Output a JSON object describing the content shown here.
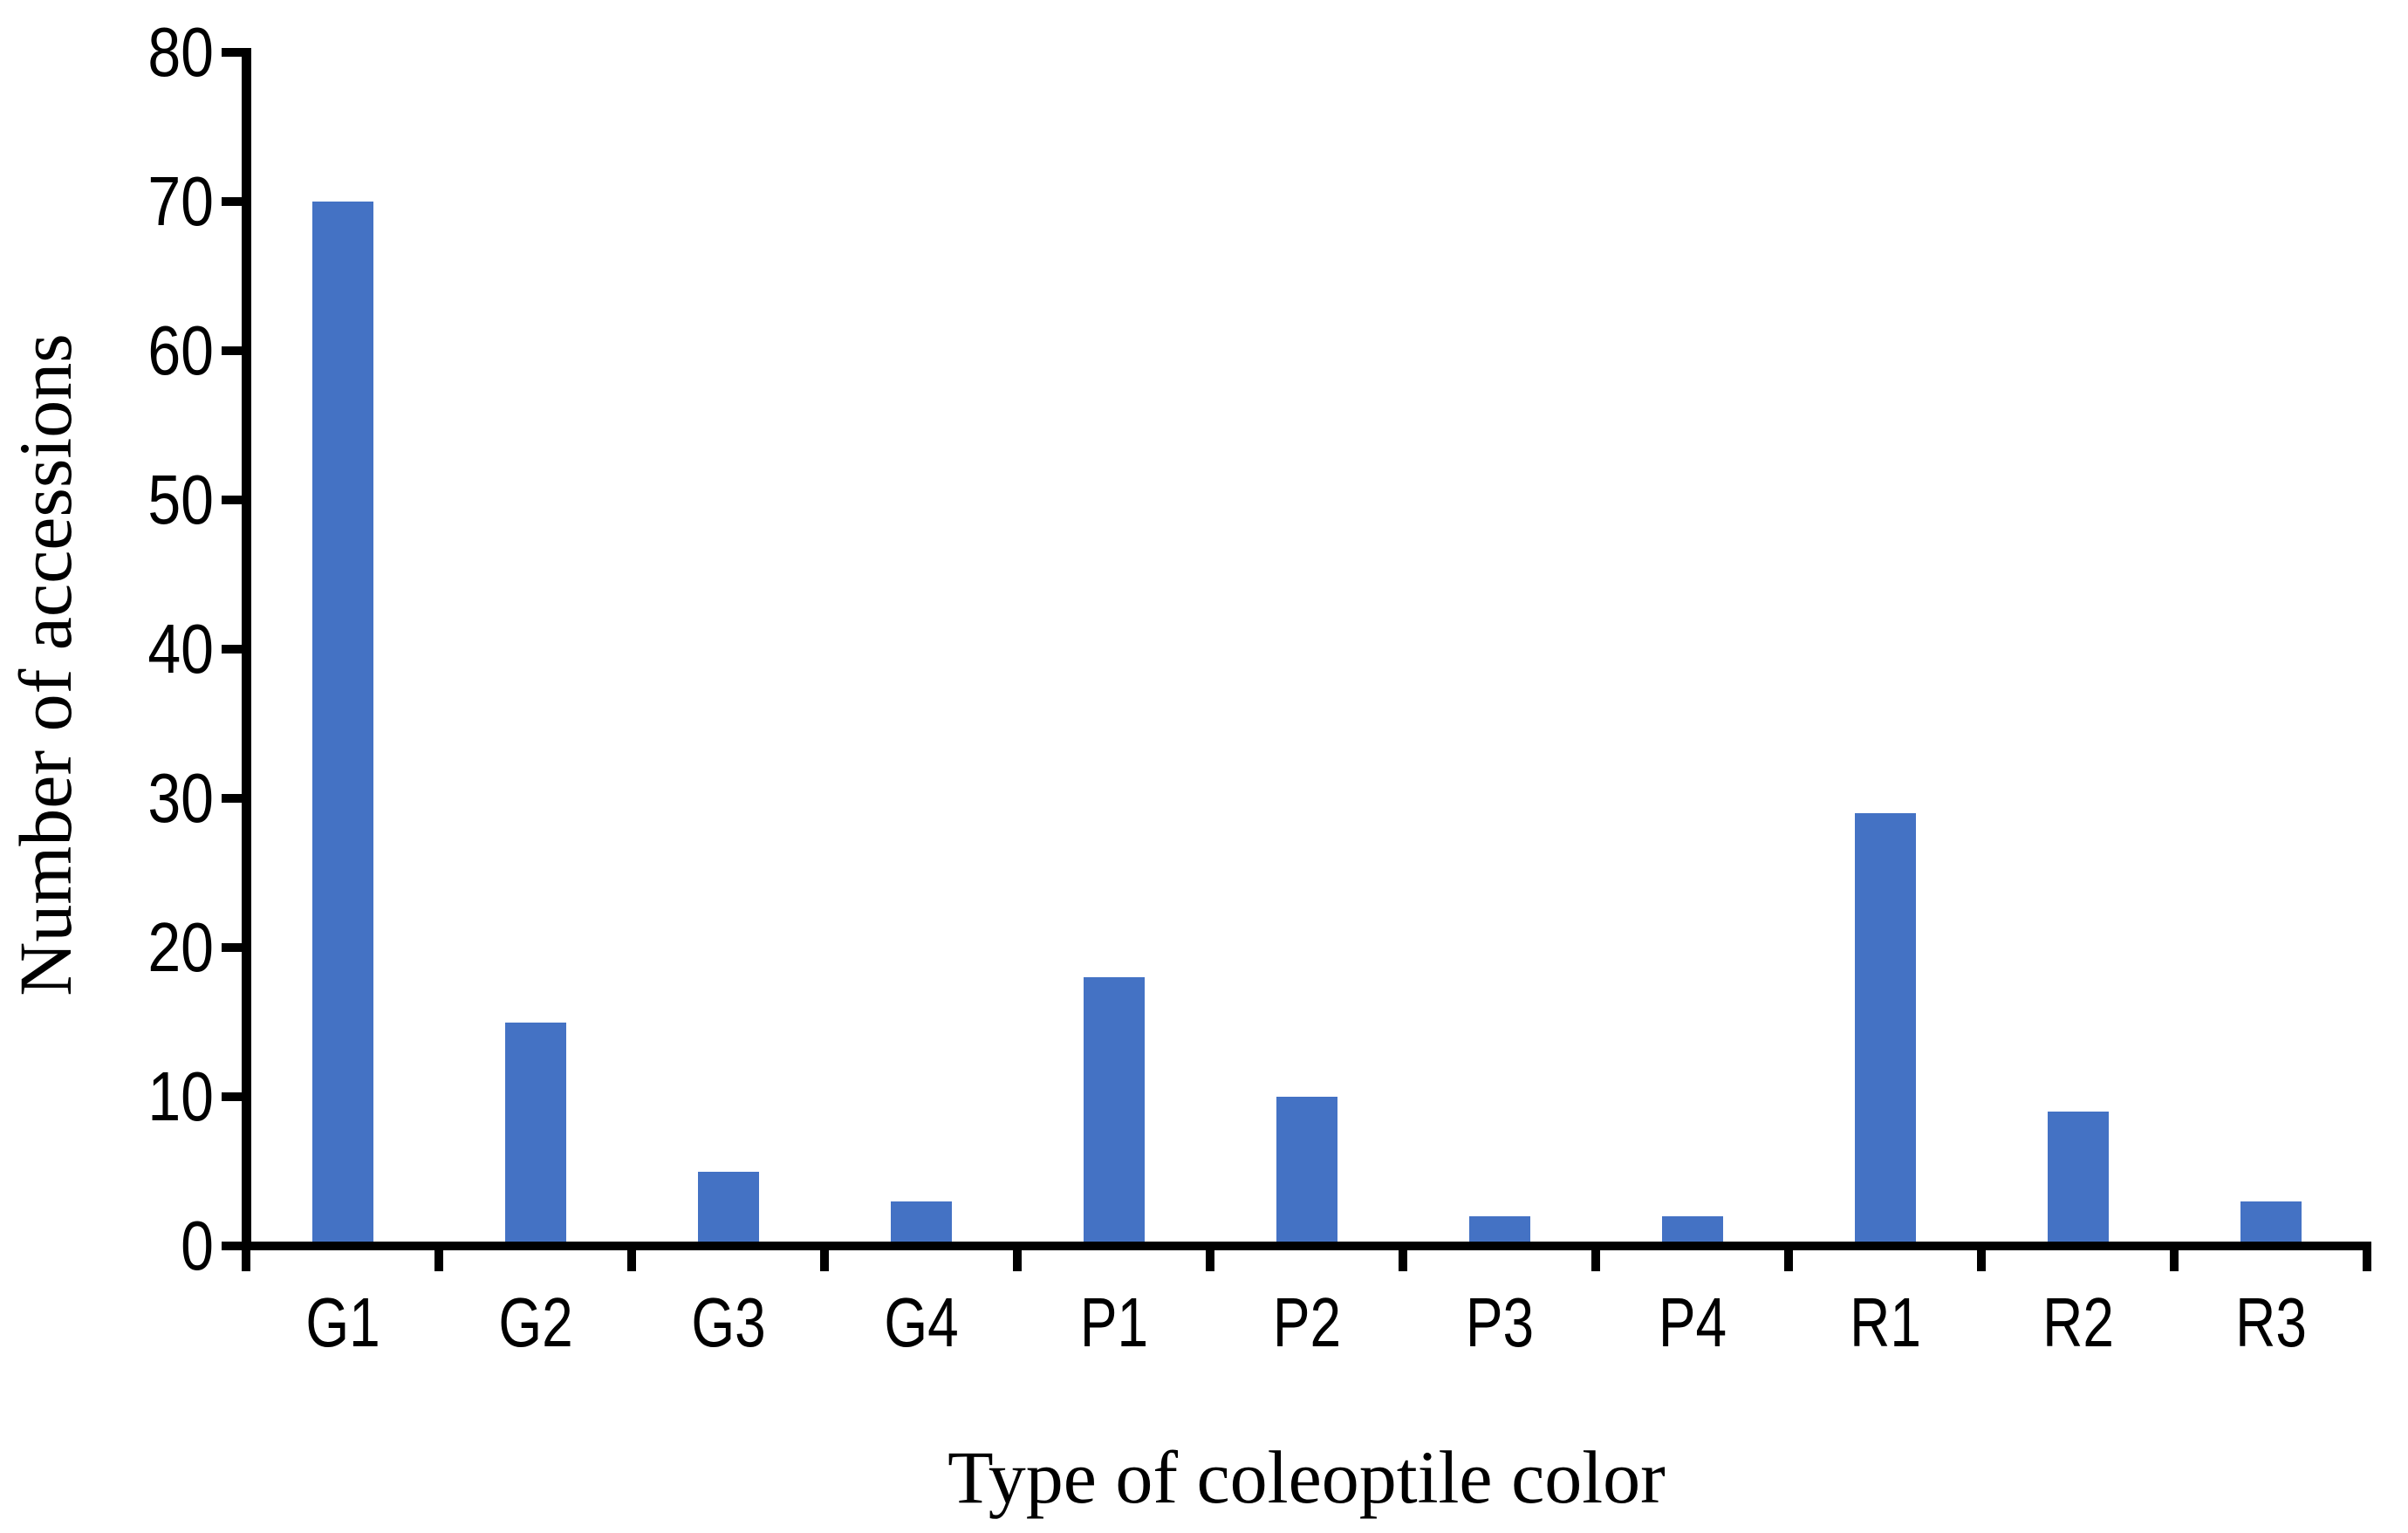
{
  "chart_data": {
    "type": "bar",
    "title": "",
    "categories": [
      "G1",
      "G2",
      "G3",
      "G4",
      "P1",
      "P2",
      "P3",
      "P4",
      "R1",
      "R2",
      "R3"
    ],
    "values": [
      70,
      15,
      5,
      3,
      18,
      10,
      2,
      2,
      29,
      9,
      3
    ],
    "xlabel": "Type of coleoptile color",
    "ylabel": "Number of accessions",
    "ylim": [
      0,
      80
    ],
    "yticks": [
      0,
      10,
      20,
      30,
      40,
      50,
      60,
      70,
      80
    ],
    "grid": false,
    "legend": false,
    "bar_color": "#4472C4",
    "axis_color": "#000000",
    "background_color": "#FFFFFF"
  }
}
